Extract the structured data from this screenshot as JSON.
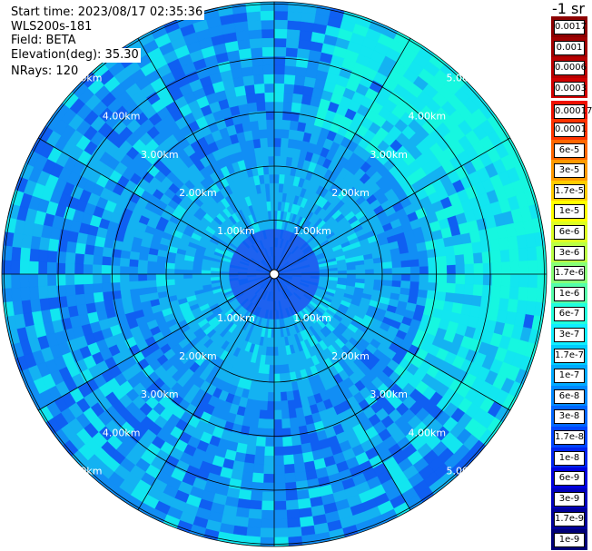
{
  "info": {
    "start_time": "Start time: 2023/08/17 02:35:36",
    "instrument": "WLS200s-181",
    "field": "Field: BETA",
    "elevation": "Elevation(deg): 35.30",
    "nrays": "NRays: 120"
  },
  "unit_label": "-1 sr",
  "range_labels": [
    "1.00km",
    "2.00km",
    "3.00km",
    "4.00km",
    "5.00km"
  ],
  "colorbar": [
    {
      "label": "0.0017",
      "color": "#8b0000"
    },
    {
      "label": "0.001",
      "color": "#a00000"
    },
    {
      "label": "0.0006",
      "color": "#b80000"
    },
    {
      "label": "0.0003",
      "color": "#d00000"
    },
    {
      "label": "0.00017",
      "color": "#ee1100"
    },
    {
      "label": "0.0001",
      "color": "#ff3300"
    },
    {
      "label": "6e-5",
      "color": "#ff6600"
    },
    {
      "label": "3e-5",
      "color": "#ff9900"
    },
    {
      "label": "1.7e-5",
      "color": "#ffcc00"
    },
    {
      "label": "1e-5",
      "color": "#ffff00"
    },
    {
      "label": "6e-6",
      "color": "#ddff22"
    },
    {
      "label": "3e-6",
      "color": "#bbff44"
    },
    {
      "label": "1.7e-6",
      "color": "#88ff77"
    },
    {
      "label": "1e-6",
      "color": "#55ffaa"
    },
    {
      "label": "6e-7",
      "color": "#22ffdd"
    },
    {
      "label": "3e-7",
      "color": "#11eeff"
    },
    {
      "label": "1.7e-7",
      "color": "#00ccff"
    },
    {
      "label": "1e-7",
      "color": "#00aaff"
    },
    {
      "label": "6e-8",
      "color": "#0088ff"
    },
    {
      "label": "3e-8",
      "color": "#0066ff"
    },
    {
      "label": "1.7e-8",
      "color": "#0044ff"
    },
    {
      "label": "1e-8",
      "color": "#0022ee"
    },
    {
      "label": "6e-9",
      "color": "#0000dd"
    },
    {
      "label": "3e-9",
      "color": "#0000bb"
    },
    {
      "label": "1.7e-9",
      "color": "#000099"
    },
    {
      "label": "1e-9",
      "color": "#000077"
    }
  ],
  "scan_colors": {
    "near_core": "#1e62f0",
    "light": "#14b2f2",
    "medium": "#118ef5",
    "dark": "#0f5ff2",
    "cyan": "#12e6f0",
    "aqua": "#16f7e0"
  }
}
